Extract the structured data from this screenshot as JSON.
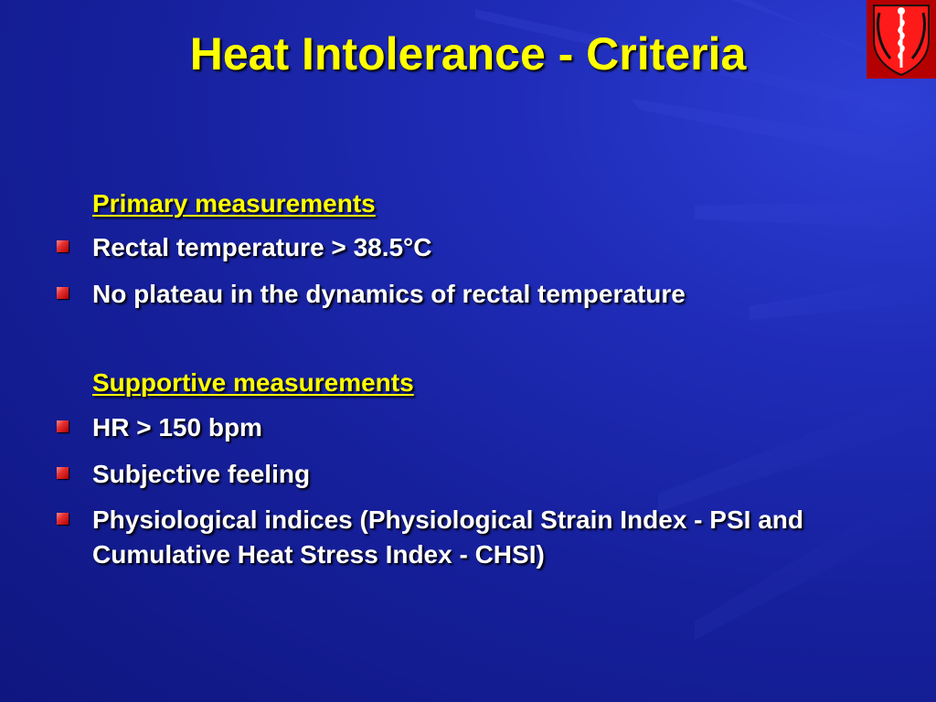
{
  "slide": {
    "title": "Heat Intolerance - Criteria",
    "logo_icon": "caduceus-shield-icon",
    "colors": {
      "background": "#1a24a8",
      "title": "#ffff00",
      "heading": "#ffff00",
      "text": "#ffffff",
      "bullet": "#e53030",
      "logo_shield": "#d40000"
    },
    "primary": {
      "heading": "Primary measurements",
      "items": [
        "Rectal temperature > 38.5°C",
        "No plateau in the dynamics of rectal temperature"
      ]
    },
    "supportive": {
      "heading": "Supportive measurements",
      "items": [
        "HR > 150 bpm",
        "Subjective feeling",
        "Physiological indices (Physiological Strain Index - PSI and Cumulative Heat Stress Index - CHSI)"
      ]
    }
  }
}
